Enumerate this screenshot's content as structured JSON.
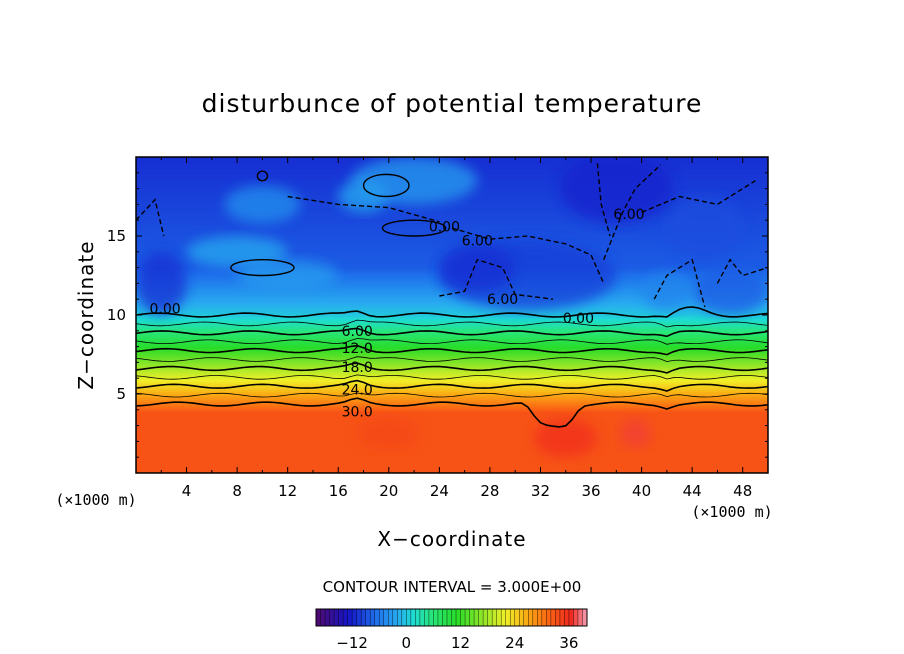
{
  "chart_data": {
    "type": "contour",
    "title": "disturbunce of potential temperature",
    "xlabel": "X−coordinate",
    "ylabel": "Z−coordinate",
    "x_unit": "(×1000 m)",
    "y_unit": "(×1000 m)",
    "xlim": [
      0,
      50
    ],
    "ylim": [
      0,
      20
    ],
    "x_ticks": [
      "4",
      "8",
      "12",
      "16",
      "20",
      "24",
      "28",
      "32",
      "36",
      "40",
      "44",
      "48"
    ],
    "y_ticks": [
      "5",
      "10",
      "15"
    ],
    "contour_interval_text": "CONTOUR INTERVAL = 3.000E+00",
    "colorbar": {
      "min": -20,
      "max": 40,
      "tick_labels": [
        "−12",
        "0",
        "12",
        "24",
        "36"
      ],
      "tick_values": [
        -12,
        0,
        12,
        24,
        36
      ]
    },
    "contour_labels": [
      {
        "text": "0.00",
        "x": 2.3,
        "z": 10.4
      },
      {
        "text": "0.00",
        "x": 35.0,
        "z": 9.8
      },
      {
        "text": "0.00",
        "x": 24.4,
        "z": 15.6
      },
      {
        "text": "6.00",
        "x": 17.5,
        "z": 9.0
      },
      {
        "text": "12.0",
        "x": 17.5,
        "z": 7.9
      },
      {
        "text": "18.0",
        "x": 17.5,
        "z": 6.7
      },
      {
        "text": "24.0",
        "x": 17.5,
        "z": 5.3
      },
      {
        "text": "30.0",
        "x": 17.5,
        "z": 3.9
      },
      {
        "text": "6.00",
        "x": 27.0,
        "z": 14.7
      },
      {
        "text": "6.00",
        "x": 29.0,
        "z": 11.0
      },
      {
        "text": "6.00",
        "x": 39.0,
        "z": 16.4
      }
    ],
    "contour_levels_shown": [
      -6,
      0,
      6,
      12,
      18,
      24,
      30
    ],
    "field_summary": "Near-uniform stable stratification: about 33 near the ground decreasing upward to about 0 at z=10, negative values (down to about -12) in the upper layer",
    "grid": false,
    "colorbar_position": "bottom"
  }
}
